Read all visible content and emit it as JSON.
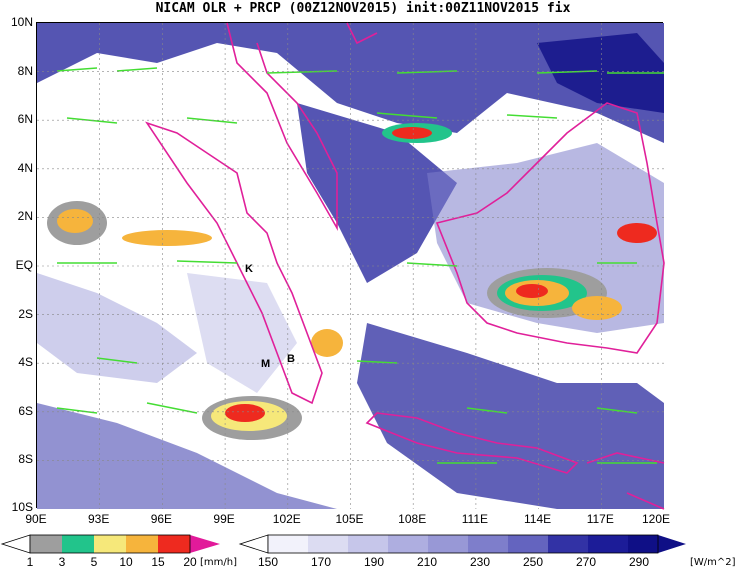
{
  "title": "NICAM OLR + PRCP (00Z12NOV2015) init:00Z11NOV2015 fix",
  "map": {
    "lat_ticks": [
      "10N",
      "8N",
      "6N",
      "4N",
      "2N",
      "EQ",
      "2S",
      "4S",
      "6S",
      "8S",
      "10S"
    ],
    "lon_ticks": [
      "90E",
      "93E",
      "96E",
      "99E",
      "102E",
      "105E",
      "108E",
      "111E",
      "114E",
      "117E",
      "120E"
    ],
    "site_labels": [
      "K",
      "M",
      "B"
    ]
  },
  "colorbars": {
    "precip": {
      "ticks": [
        "1",
        "3",
        "5",
        "10",
        "15",
        "20"
      ],
      "unit": "[mm/h]",
      "colors": [
        "#9e9e9e",
        "#22c48b",
        "#f6e87a",
        "#f6b43c",
        "#ee2a1f",
        "#e21a9a"
      ]
    },
    "olr": {
      "ticks": [
        "150",
        "170",
        "190",
        "210",
        "230",
        "250",
        "270",
        "290"
      ],
      "unit": "[W/m^2]",
      "colors": [
        "#f2f2fb",
        "#dcdcf2",
        "#c6c6ea",
        "#aeaee0",
        "#9898d6",
        "#7e7ecb",
        "#6464bf",
        "#4a4ab2",
        "#3232a5",
        "#1c1c98",
        "#0f0f86"
      ]
    }
  },
  "layers": {
    "coastline_color": "#e0209a",
    "wind_vector_color": "#44dd33"
  }
}
